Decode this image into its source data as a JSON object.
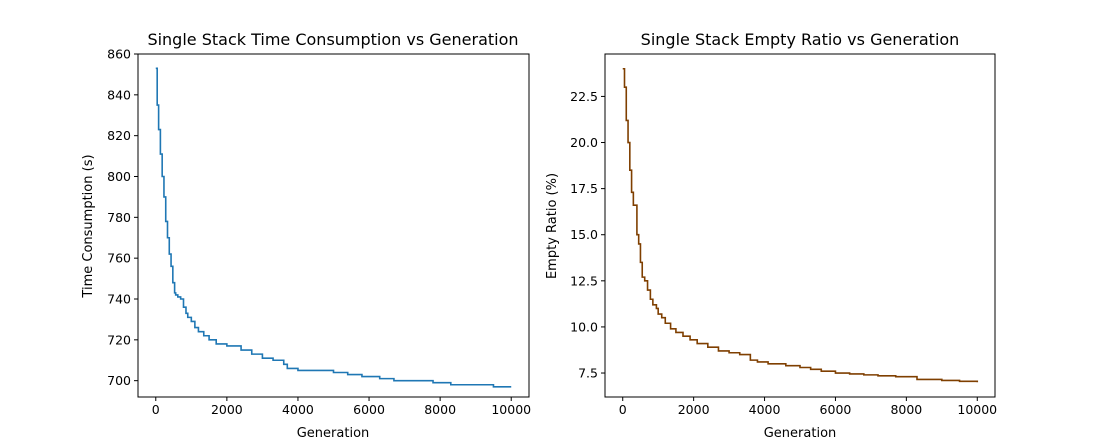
{
  "chart_data": [
    {
      "type": "line",
      "title": "Single Stack Time Consumption vs Generation",
      "xlabel": "Generation",
      "ylabel": "Time Consumption (s)",
      "xlim": [
        -500,
        10500
      ],
      "ylim": [
        692,
        860
      ],
      "xticks": [
        0,
        2000,
        4000,
        6000,
        8000,
        10000
      ],
      "xtick_labels": [
        "0",
        "2000",
        "4000",
        "6000",
        "8000",
        "10000"
      ],
      "yticks": [
        700,
        720,
        740,
        760,
        780,
        800,
        820,
        840,
        860
      ],
      "ytick_labels": [
        "700",
        "720",
        "740",
        "760",
        "780",
        "800",
        "820",
        "840",
        "860"
      ],
      "grid": false,
      "series": [
        {
          "color": "#1f77b4",
          "step": true,
          "x": [
            0,
            40,
            80,
            130,
            180,
            230,
            280,
            330,
            380,
            430,
            480,
            530,
            560,
            620,
            700,
            780,
            850,
            900,
            1000,
            1100,
            1200,
            1350,
            1500,
            1700,
            2000,
            2400,
            2700,
            3000,
            3300,
            3600,
            3700,
            4000,
            4500,
            5000,
            5400,
            5800,
            6300,
            6700,
            7300,
            7800,
            8300,
            9000,
            9500,
            10000
          ],
          "y": [
            853,
            835,
            823,
            811,
            800,
            790,
            778,
            770,
            762,
            756,
            748,
            743,
            742,
            741,
            740,
            736,
            733,
            731,
            729,
            726,
            724,
            722,
            720,
            718,
            717,
            715,
            713,
            711,
            710,
            708,
            706,
            705,
            705,
            704,
            703,
            702,
            701,
            700,
            700,
            699,
            698,
            698,
            697,
            697
          ]
        }
      ]
    },
    {
      "type": "line",
      "title": "Single Stack Empty Ratio vs Generation",
      "xlabel": "Generation",
      "ylabel": "Empty Ratio (%)",
      "xlim": [
        -500,
        10500
      ],
      "ylim": [
        6.2,
        24.8
      ],
      "xticks": [
        0,
        2000,
        4000,
        6000,
        8000,
        10000
      ],
      "xtick_labels": [
        "0",
        "2000",
        "4000",
        "6000",
        "8000",
        "10000"
      ],
      "yticks": [
        7.5,
        10.0,
        12.5,
        15.0,
        17.5,
        20.0,
        22.5
      ],
      "ytick_labels": [
        "7.5",
        "10.0",
        "12.5",
        "15.0",
        "17.5",
        "20.0",
        "22.5"
      ],
      "grid": false,
      "series": [
        {
          "color": "#7f3f00",
          "step": true,
          "x": [
            0,
            50,
            100,
            150,
            200,
            250,
            300,
            400,
            450,
            500,
            550,
            620,
            700,
            780,
            850,
            950,
            1000,
            1100,
            1200,
            1350,
            1500,
            1700,
            1900,
            2100,
            2400,
            2700,
            3000,
            3300,
            3600,
            3800,
            4100,
            4600,
            5000,
            5300,
            5600,
            6000,
            6400,
            6800,
            7200,
            7700,
            8300,
            9000,
            9500,
            10000
          ],
          "y": [
            24.0,
            23.0,
            21.2,
            20.0,
            18.5,
            17.3,
            16.6,
            15.0,
            14.5,
            13.5,
            12.7,
            12.5,
            12.0,
            11.5,
            11.2,
            11.0,
            10.7,
            10.5,
            10.2,
            9.9,
            9.7,
            9.5,
            9.3,
            9.1,
            8.9,
            8.7,
            8.6,
            8.5,
            8.2,
            8.1,
            8.0,
            7.9,
            7.8,
            7.7,
            7.6,
            7.5,
            7.45,
            7.4,
            7.35,
            7.3,
            7.15,
            7.1,
            7.05,
            7.0
          ]
        }
      ]
    }
  ]
}
